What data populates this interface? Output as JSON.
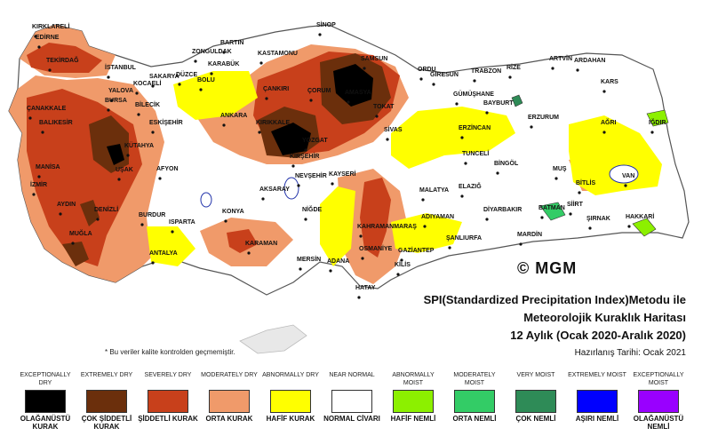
{
  "title": {
    "line1": "SPI(Standardized Precipitation Index)Metodu ile",
    "line2": "Meteorolojik Kuraklık Haritası",
    "line3": "12 Aylık (Ocak 2020-Aralık 2020)",
    "prepared": "Hazırlanış Tarihi: Ocak 2021"
  },
  "note": "* Bu veriler kalite kontrolden geçmemiştir.",
  "logo": "© MGM",
  "legend": [
    {
      "en": "EXCEPTIONALLY DRY",
      "tr": "OLAĞANÜSTÜ KURAK",
      "color": "#000000"
    },
    {
      "en": "EXTREMELY DRY",
      "tr": "ÇOK ŞİDDETLİ KURAK",
      "color": "#6b2f0c"
    },
    {
      "en": "SEVERELY DRY",
      "tr": "ŞİDDETLİ KURAK",
      "color": "#c8401b"
    },
    {
      "en": "MODERATELY DRY",
      "tr": "ORTA KURAK",
      "color": "#f09a6a"
    },
    {
      "en": "ABNORMALLY DRY",
      "tr": "HAFİF KURAK",
      "color": "#ffff00"
    },
    {
      "en": "NEAR NORMAL",
      "tr": "NORMAL CİVARI",
      "color": "#ffffff"
    },
    {
      "en": "ABNORMALLY MOIST",
      "tr": "HAFİF NEMLİ",
      "color": "#8cf000"
    },
    {
      "en": "MODERATELY MOIST",
      "tr": "ORTA NEMLİ",
      "color": "#33cc66"
    },
    {
      "en": "VERY MOIST",
      "tr": "ÇOK NEMLİ",
      "color": "#2e8b57"
    },
    {
      "en": "EXTREMELY MOIST",
      "tr": "AŞIRI NEMLİ",
      "color": "#0000ff"
    },
    {
      "en": "EXCEPTIONALLY MOIST",
      "tr": "OLAĞANÜSTÜ NEMLİ",
      "color": "#9900ff"
    }
  ],
  "cities": [
    {
      "name": "KIRKLARELİ"
    },
    {
      "name": "EDİRNE"
    },
    {
      "name": "TEKİRDAĞ"
    },
    {
      "name": "İSTANBUL"
    },
    {
      "name": "ÇANAKKALE"
    },
    {
      "name": "BALIKESİR"
    },
    {
      "name": "BURSA"
    },
    {
      "name": "YALOVA"
    },
    {
      "name": "KOCAELİ"
    },
    {
      "name": "SAKARYA"
    },
    {
      "name": "DÜZCE"
    },
    {
      "name": "BOLU"
    },
    {
      "name": "BİLECİK"
    },
    {
      "name": "ESKİŞEHİR"
    },
    {
      "name": "KÜTAHYA"
    },
    {
      "name": "MANİSA"
    },
    {
      "name": "İZMİR"
    },
    {
      "name": "UŞAK"
    },
    {
      "name": "AYDIN"
    },
    {
      "name": "DENİZLİ"
    },
    {
      "name": "MUĞLA"
    },
    {
      "name": "BURDUR"
    },
    {
      "name": "AFYON"
    },
    {
      "name": "ISPARTA"
    },
    {
      "name": "ANTALYA"
    },
    {
      "name": "KONYA"
    },
    {
      "name": "KARAMAN"
    },
    {
      "name": "MERSİN"
    },
    {
      "name": "ADANA"
    },
    {
      "name": "OSMANİYE"
    },
    {
      "name": "HATAY"
    },
    {
      "name": "KİLİS"
    },
    {
      "name": "GAZİANTEP"
    },
    {
      "name": "ADIYAMAN"
    },
    {
      "name": "ŞANLIURFA"
    },
    {
      "name": "MARDİN"
    },
    {
      "name": "KAHRAMANMARAŞ"
    },
    {
      "name": "MALATYA"
    },
    {
      "name": "ELAZIĞ"
    },
    {
      "name": "DİYARBAKIR"
    },
    {
      "name": "BATMAN"
    },
    {
      "name": "SİİRT"
    },
    {
      "name": "ŞIRNAK"
    },
    {
      "name": "HAKKARİ"
    },
    {
      "name": "VAN"
    },
    {
      "name": "BİTLİS"
    },
    {
      "name": "MUŞ"
    },
    {
      "name": "BİNGÖL"
    },
    {
      "name": "TUNCELİ"
    },
    {
      "name": "ERZİNCAN"
    },
    {
      "name": "ERZURUM"
    },
    {
      "name": "AĞRI"
    },
    {
      "name": "IĞDIR"
    },
    {
      "name": "KARS"
    },
    {
      "name": "ARDAHAN"
    },
    {
      "name": "ARTVİN"
    },
    {
      "name": "RİZE"
    },
    {
      "name": "TRABZON"
    },
    {
      "name": "GİRESUN"
    },
    {
      "name": "ORDU"
    },
    {
      "name": "GÜMÜŞHANE"
    },
    {
      "name": "BAYBURT"
    },
    {
      "name": "SAMSUN"
    },
    {
      "name": "SİNOP"
    },
    {
      "name": "KASTAMONU"
    },
    {
      "name": "BARTIN"
    },
    {
      "name": "ZONGULDAK"
    },
    {
      "name": "KARABÜK"
    },
    {
      "name": "ÇANKIRI"
    },
    {
      "name": "ÇORUM"
    },
    {
      "name": "AMASYA"
    },
    {
      "name": "TOKAT"
    },
    {
      "name": "YOZGAT"
    },
    {
      "name": "KIRIKKALE"
    },
    {
      "name": "ANKARA"
    },
    {
      "name": "KIRŞEHİR"
    },
    {
      "name": "NEVŞEHİR"
    },
    {
      "name": "KAYSERİ"
    },
    {
      "name": "AKSARAY"
    },
    {
      "name": "NİĞDE"
    },
    {
      "name": "SİVAS"
    }
  ]
}
